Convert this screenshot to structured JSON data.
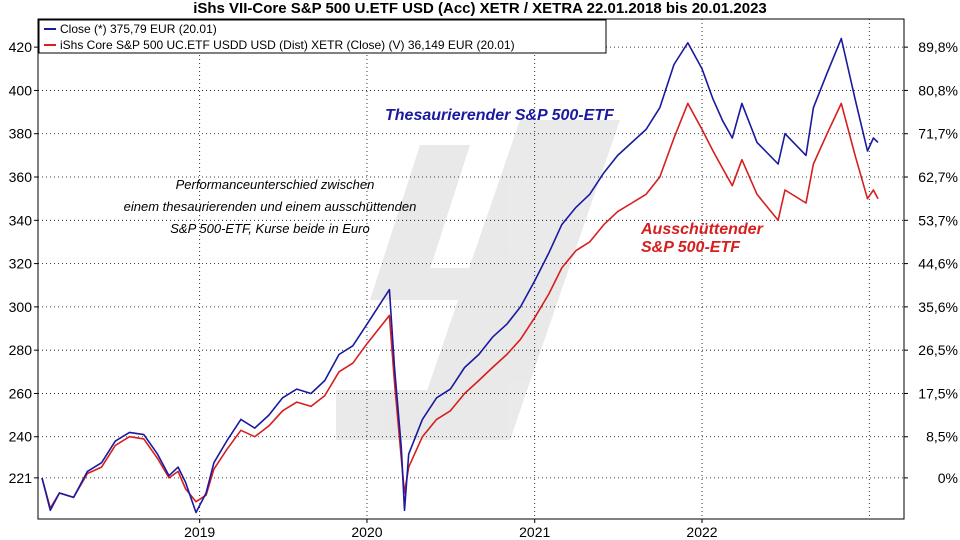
{
  "chart_data": {
    "type": "line",
    "title": "iShs VII-Core S&P 500 U.ETF USD (Acc) XETR / XETRA 22.01.2018 bis 20.01.2023",
    "x_range": [
      "2018-01-22",
      "2023-01-20"
    ],
    "x_ticks": [
      "2019",
      "2020",
      "2021",
      "2022"
    ],
    "y_ticks_left": [
      "420",
      "400",
      "380",
      "360",
      "340",
      "320",
      "300",
      "280",
      "260",
      "240",
      "221"
    ],
    "y_ticks_right": [
      "89,8%",
      "80,8%",
      "71,7%",
      "62,7%",
      "53,7%",
      "44,6%",
      "35,6%",
      "26,5%",
      "17,5%",
      "8,5%",
      "0%"
    ],
    "ylim": [
      202,
      433
    ],
    "legend": [
      {
        "text": "Close (*) 375,79 EUR (20.01)",
        "color": "#1a1aa0"
      },
      {
        "text": "iShs Core S&P 500 UC.ETF USDD USD (Dist) XETR (Close) (V) 36,149 EUR (20.01)",
        "color": "#d61f1f"
      }
    ],
    "annotations": {
      "blue_label": "Thesaurierender S&P 500-ETF",
      "red_label_line1": "Ausschüttender",
      "red_label_line2": "S&P 500-ETF",
      "note_line1": "Performanceunterschied zwischen",
      "note_line2": "einem thesaurierenden und einem ausschüttenden",
      "note_line3": "S&P 500-ETF, Kurse beide in Euro"
    },
    "series": [
      {
        "name": "Close (*) 375,79 EUR (20.01)",
        "color": "#1a1aa0",
        "x": [
          "2018-01-22",
          "2018-02-09",
          "2018-03-01",
          "2018-04-01",
          "2018-05-01",
          "2018-06-01",
          "2018-07-01",
          "2018-08-01",
          "2018-09-01",
          "2018-10-01",
          "2018-10-26",
          "2018-11-15",
          "2018-12-01",
          "2018-12-24",
          "2019-01-15",
          "2019-02-01",
          "2019-03-01",
          "2019-04-01",
          "2019-05-01",
          "2019-06-01",
          "2019-07-01",
          "2019-08-01",
          "2019-09-01",
          "2019-10-01",
          "2019-11-01",
          "2019-12-01",
          "2020-01-01",
          "2020-02-19",
          "2020-03-01",
          "2020-03-16",
          "2020-03-23",
          "2020-04-01",
          "2020-05-01",
          "2020-06-01",
          "2020-07-01",
          "2020-08-01",
          "2020-09-01",
          "2020-10-01",
          "2020-11-01",
          "2020-12-01",
          "2021-01-01",
          "2021-02-01",
          "2021-03-01",
          "2021-04-01",
          "2021-05-01",
          "2021-06-01",
          "2021-07-01",
          "2021-08-01",
          "2021-09-01",
          "2021-10-01",
          "2021-11-01",
          "2021-12-01",
          "2022-01-01",
          "2022-01-25",
          "2022-02-15",
          "2022-03-08",
          "2022-03-29",
          "2022-05-01",
          "2022-06-16",
          "2022-07-01",
          "2022-08-16",
          "2022-09-01",
          "2022-10-01",
          "2022-11-01",
          "2022-12-01",
          "2022-12-28",
          "2023-01-10",
          "2023-01-20"
        ],
        "values": [
          221,
          206,
          214,
          212,
          224,
          228,
          238,
          242,
          241,
          232,
          222,
          226,
          219,
          205,
          214,
          228,
          238,
          248,
          244,
          250,
          258,
          262,
          260,
          266,
          278,
          282,
          292,
          308,
          272,
          235,
          206,
          232,
          248,
          258,
          262,
          272,
          278,
          286,
          292,
          300,
          312,
          325,
          338,
          346,
          352,
          362,
          370,
          376,
          382,
          392,
          412,
          422,
          410,
          396,
          386,
          378,
          394,
          376,
          366,
          380,
          370,
          392,
          408,
          424,
          396,
          372,
          378,
          376
        ]
      },
      {
        "name": "iShs Core S&P 500 UC.ETF USDD USD (Dist) XETR (Close) (V) 36,149 EUR (20.01)",
        "color": "#d61f1f",
        "x": [
          "2018-01-22",
          "2018-02-09",
          "2018-03-01",
          "2018-04-01",
          "2018-05-01",
          "2018-06-01",
          "2018-07-01",
          "2018-08-01",
          "2018-09-01",
          "2018-10-01",
          "2018-10-26",
          "2018-11-15",
          "2018-12-01",
          "2018-12-24",
          "2019-01-15",
          "2019-02-01",
          "2019-03-01",
          "2019-04-01",
          "2019-05-01",
          "2019-06-01",
          "2019-07-01",
          "2019-08-01",
          "2019-09-01",
          "2019-10-01",
          "2019-11-01",
          "2019-12-01",
          "2020-01-01",
          "2020-02-19",
          "2020-03-01",
          "2020-03-16",
          "2020-03-23",
          "2020-04-01",
          "2020-05-01",
          "2020-06-01",
          "2020-07-01",
          "2020-08-01",
          "2020-09-01",
          "2020-10-01",
          "2020-11-01",
          "2020-12-01",
          "2021-01-01",
          "2021-02-01",
          "2021-03-01",
          "2021-04-01",
          "2021-05-01",
          "2021-06-01",
          "2021-07-01",
          "2021-08-01",
          "2021-09-01",
          "2021-10-01",
          "2021-11-01",
          "2021-12-01",
          "2022-01-01",
          "2022-01-25",
          "2022-02-15",
          "2022-03-08",
          "2022-03-29",
          "2022-05-01",
          "2022-06-16",
          "2022-07-01",
          "2022-08-16",
          "2022-09-01",
          "2022-10-01",
          "2022-11-01",
          "2022-12-01",
          "2022-12-28",
          "2023-01-10",
          "2023-01-20"
        ],
        "values": [
          221,
          207,
          214,
          212,
          223,
          226,
          236,
          240,
          239,
          230,
          221,
          224,
          216,
          210,
          213,
          225,
          234,
          243,
          240,
          245,
          252,
          256,
          254,
          259,
          270,
          274,
          283,
          296,
          265,
          230,
          214,
          226,
          240,
          248,
          252,
          260,
          266,
          272,
          278,
          285,
          295,
          306,
          318,
          326,
          330,
          338,
          344,
          348,
          352,
          360,
          378,
          394,
          382,
          372,
          364,
          356,
          368,
          352,
          340,
          354,
          348,
          366,
          380,
          394,
          370,
          350,
          354,
          350
        ]
      }
    ]
  }
}
